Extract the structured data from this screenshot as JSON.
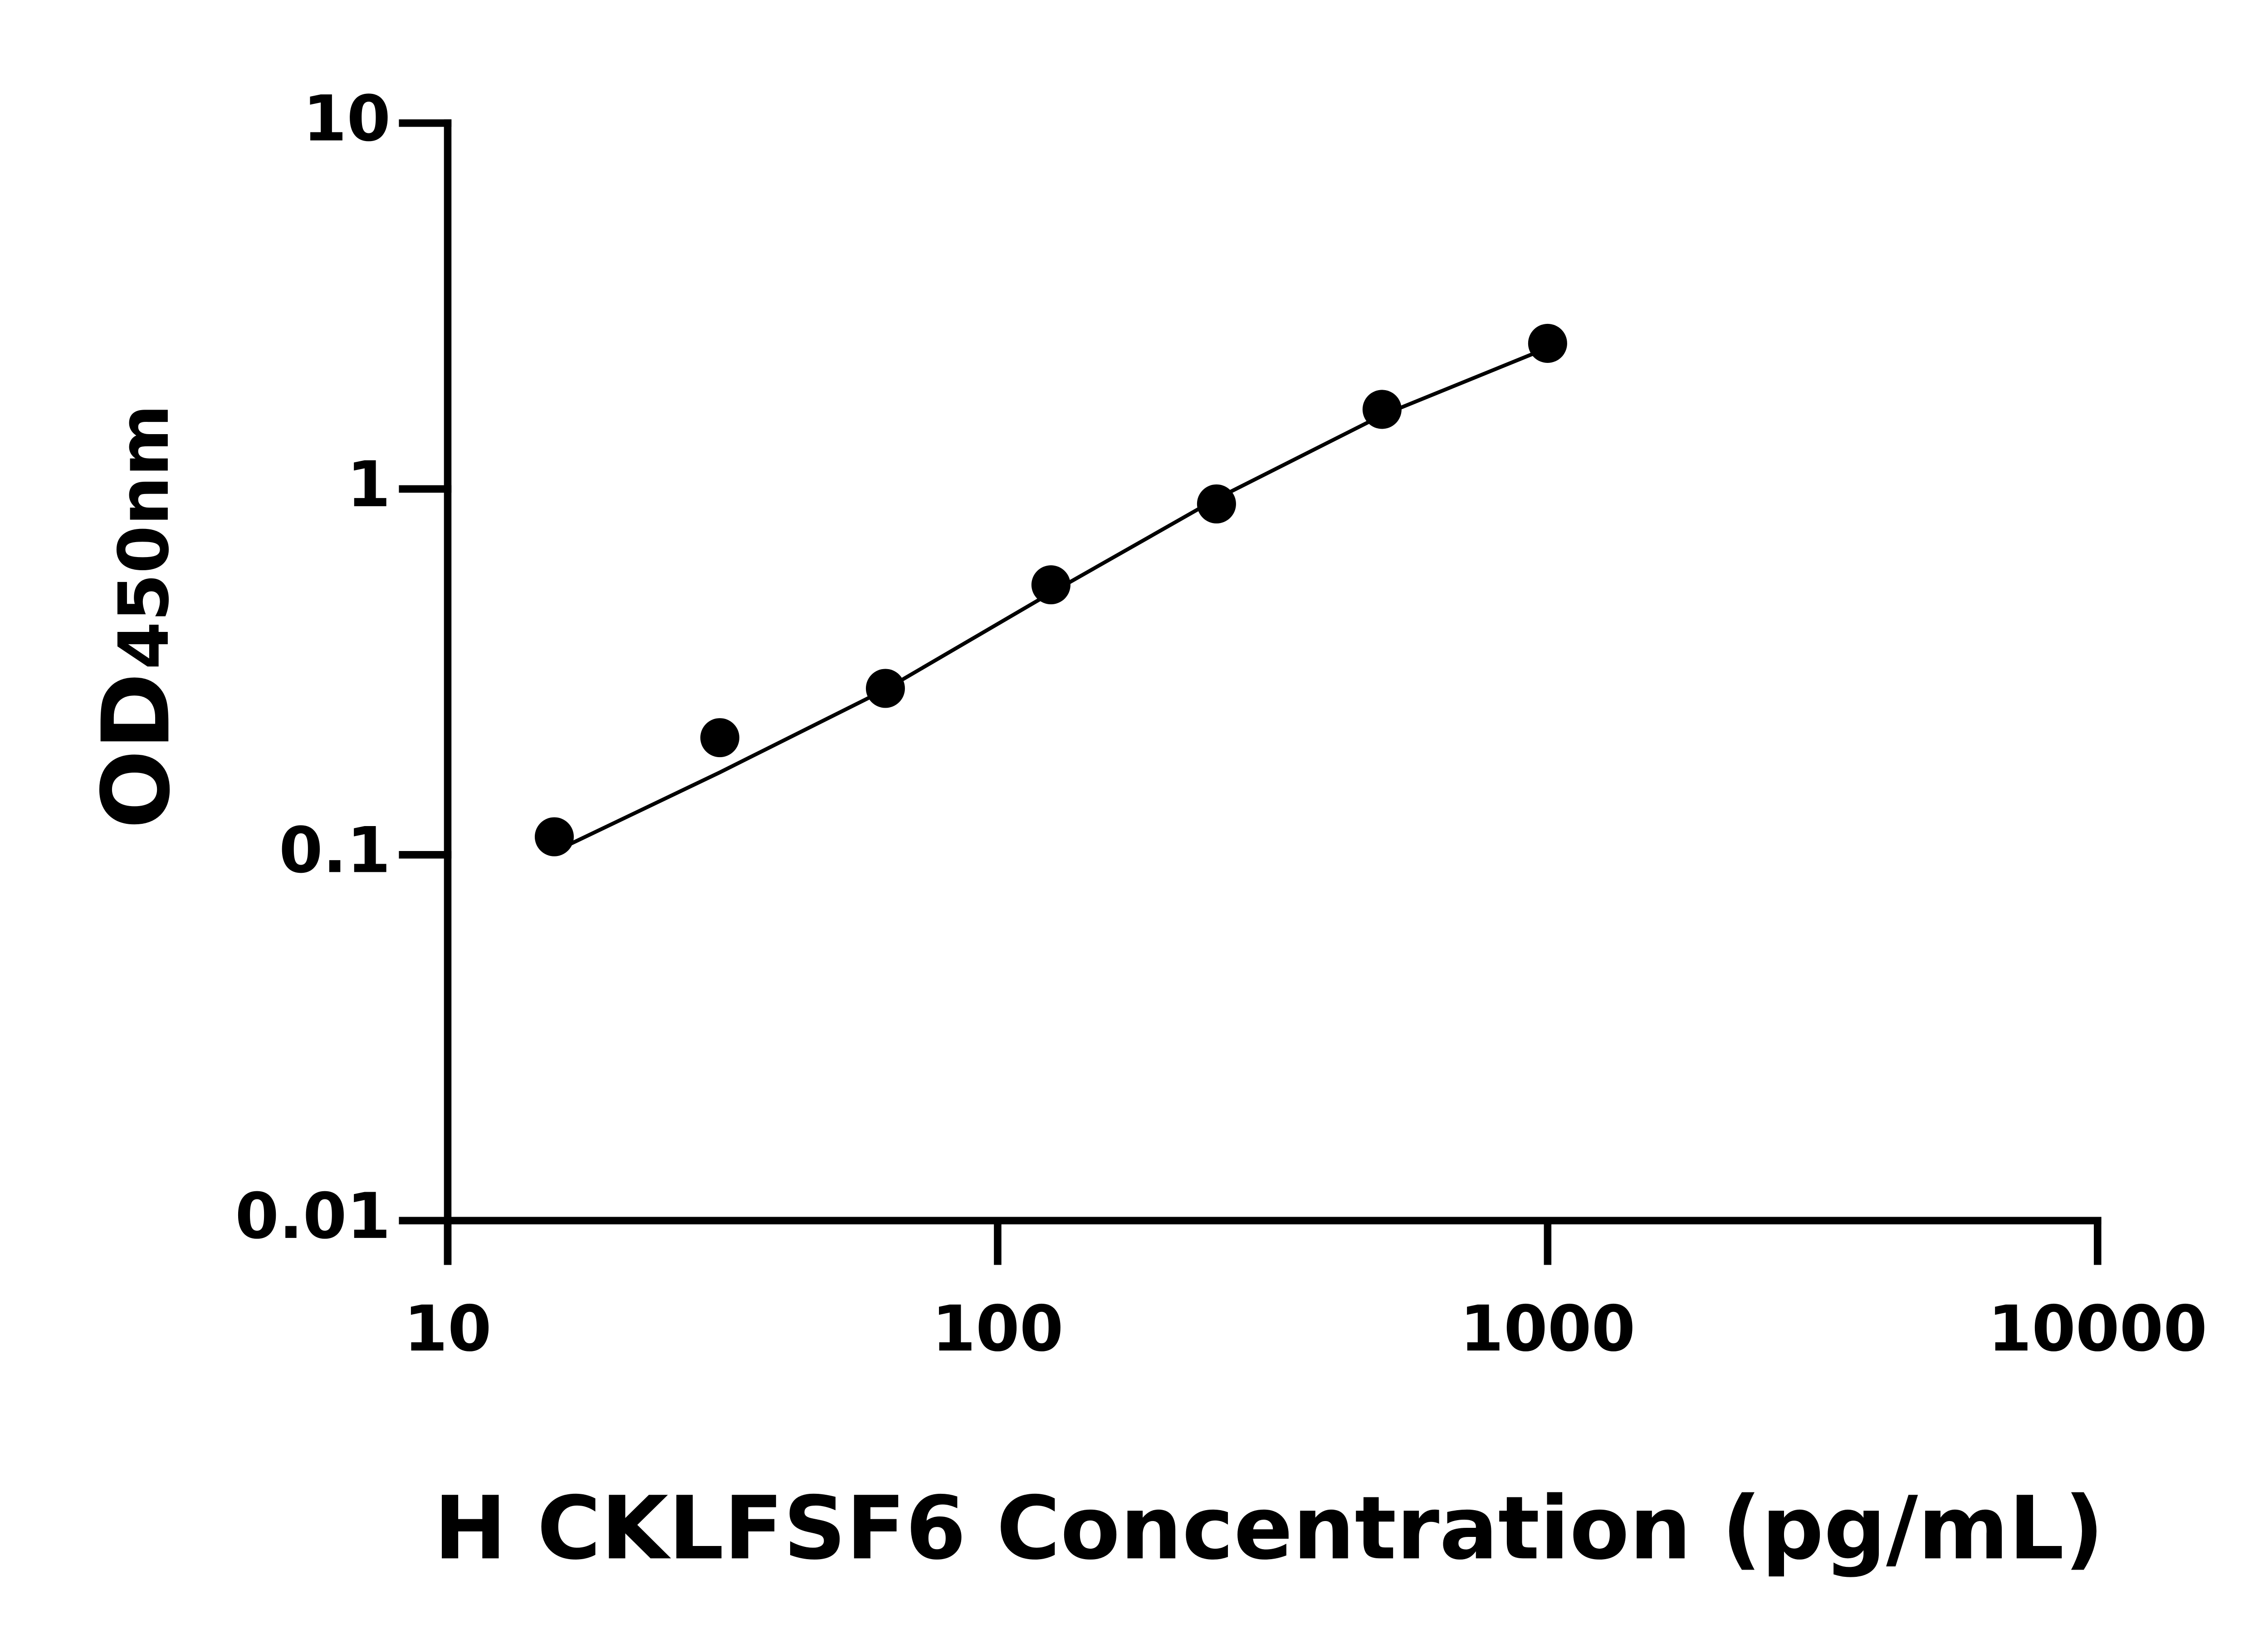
{
  "chart_data": {
    "type": "scatter",
    "xlabel": "H CKLFSF6 Concentration (pg/mL)",
    "ylabel": [
      "OD",
      "450nm"
    ],
    "x": [
      15.625,
      31.25,
      62.5,
      125,
      250,
      500,
      1000
    ],
    "series": [
      {
        "color": "#000000",
        "mode": "markers",
        "values": [
          0.112,
          0.209,
          0.285,
          0.547,
          0.91,
          1.65,
          2.5
        ]
      },
      {
        "color": "#000000",
        "mode": "line",
        "values": [
          0.102,
          0.168,
          0.283,
          0.52,
          0.94,
          1.59,
          2.43
        ]
      }
    ],
    "xlim": [
      10,
      10000
    ],
    "xticks": [
      10,
      100,
      1000,
      10000
    ],
    "xscale": "log",
    "ylim": [
      0.01,
      10
    ],
    "yticks": [
      0.01,
      0.1,
      1,
      10
    ],
    "yscale": "log",
    "grid": false
  }
}
